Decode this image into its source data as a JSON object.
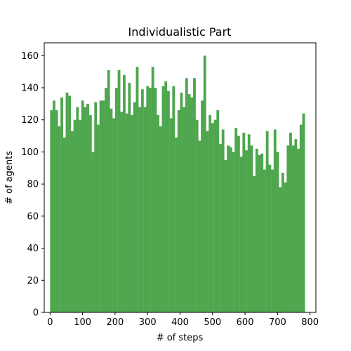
{
  "chart_data": {
    "type": "bar",
    "title": "Individualistic Part",
    "xlabel": "# of steps",
    "ylabel": "# of agents",
    "xlim": [
      -18,
      818
    ],
    "ylim": [
      0,
      168
    ],
    "xticks": [
      0,
      100,
      200,
      300,
      400,
      500,
      600,
      700,
      800
    ],
    "yticks": [
      0,
      20,
      40,
      60,
      80,
      100,
      120,
      140,
      160
    ],
    "bin_start": 0,
    "bin_width": 8,
    "grid": false,
    "bar_color": "#4ea64e",
    "values": [
      126,
      132,
      126,
      116,
      134,
      109,
      137,
      135,
      113,
      120,
      128,
      120,
      132,
      128,
      130,
      123,
      100,
      131,
      117,
      132,
      132,
      140,
      151,
      127,
      121,
      140,
      151,
      125,
      148,
      124,
      143,
      123,
      131,
      153,
      128,
      139,
      128,
      141,
      140,
      153,
      140,
      123,
      116,
      141,
      144,
      138,
      121,
      141,
      109,
      126,
      137,
      128,
      146,
      136,
      134,
      146,
      120,
      107,
      132,
      160,
      113,
      123,
      118,
      120,
      126,
      105,
      114,
      95,
      104,
      103,
      100,
      115,
      110,
      97,
      112,
      101,
      111,
      104,
      85,
      102,
      98,
      99,
      89,
      113,
      92,
      89,
      114,
      100,
      78,
      87,
      81,
      104,
      112,
      104,
      108,
      102,
      117,
      124
    ]
  }
}
